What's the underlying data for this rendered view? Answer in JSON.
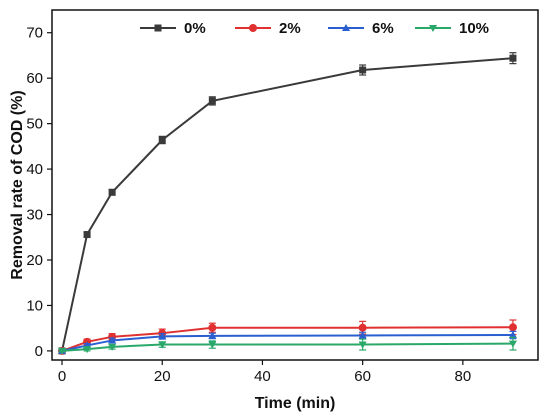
{
  "chart_data": {
    "type": "line",
    "xlabel": "Time (min)",
    "ylabel": "Removal rate of COD (%)",
    "xlim": [
      -2,
      95
    ],
    "ylim": [
      -2,
      75
    ],
    "xticks": [
      0,
      20,
      40,
      60,
      80
    ],
    "yticks": [
      0,
      10,
      20,
      30,
      40,
      50,
      60,
      70
    ],
    "grid": false,
    "legend": "top",
    "x": [
      0,
      5,
      10,
      20,
      30,
      60,
      90
    ],
    "series": [
      {
        "name": "0%",
        "color": "#3a3a3a",
        "marker": "square",
        "values": [
          0,
          25.6,
          34.9,
          46.4,
          55.0,
          61.8,
          64.4
        ],
        "errors": [
          0.3,
          0.5,
          0.6,
          0.8,
          0.9,
          1.1,
          1.2
        ]
      },
      {
        "name": "2%",
        "color": "#e03030",
        "marker": "circle",
        "values": [
          0,
          2.0,
          3.1,
          3.9,
          5.1,
          5.1,
          5.2
        ],
        "errors": [
          0.2,
          0.6,
          0.7,
          0.9,
          1.0,
          1.4,
          1.6
        ]
      },
      {
        "name": "6%",
        "color": "#2a5fd0",
        "marker": "triangle-up",
        "values": [
          0,
          1.2,
          2.3,
          3.2,
          3.3,
          3.4,
          3.5
        ],
        "errors": [
          0.2,
          0.4,
          0.5,
          0.6,
          0.6,
          0.7,
          0.8
        ]
      },
      {
        "name": "10%",
        "color": "#2aa86a",
        "marker": "triangle-down",
        "values": [
          0,
          0.4,
          0.9,
          1.4,
          1.4,
          1.4,
          1.6
        ],
        "errors": [
          0.2,
          0.4,
          0.5,
          0.6,
          0.8,
          1.2,
          1.4
        ]
      }
    ]
  }
}
